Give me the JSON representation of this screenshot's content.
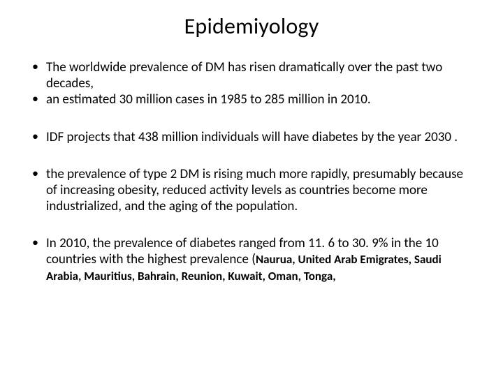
{
  "title": "Epidemiyology",
  "bullets": {
    "g1a": "The worldwide prevalence of DM has risen dramatically over the past two decades,",
    "g1b": "an estimated 30 million cases in 1985 to 285 million in 2010.",
    "g2": "IDF projects that 438 million individuals will have diabetes by the year 2030 .",
    "g3": "the prevalence of type 2 DM is rising much more rapidly, presumably because of increasing obesity, reduced activity levels as countries become more industrialized, and the aging of the population.",
    "g4_lead": "In 2010, the prevalence of diabetes ranged from 11. 6 to 30. 9% in the 10 countries with the highest prevalence (",
    "g4_bold": "Naurua, United Arab Emigrates, Saudi Arabia, Mauritius, Bahrain, Reunion, Kuwait, Oman, Tonga,"
  }
}
